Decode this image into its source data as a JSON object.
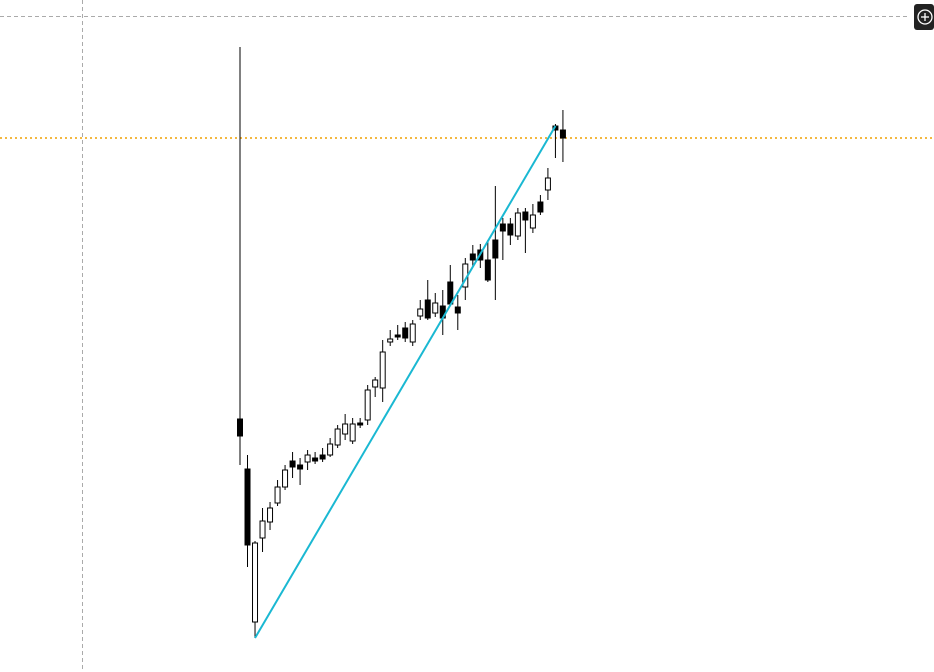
{
  "chart_data": {
    "type": "candlestick",
    "ylim": [
      0,
      672
    ],
    "open": [
      253,
      203,
      50,
      134,
      150,
      169,
      185,
      211,
      207,
      210,
      214,
      217,
      217,
      227,
      238,
      231,
      249,
      252,
      285,
      284,
      330,
      337,
      344,
      330,
      356,
      372,
      359,
      366,
      390,
      365,
      385,
      418,
      422,
      412,
      432,
      448,
      448,
      436,
      460,
      444,
      470,
      482,
      546,
      542
    ],
    "high": [
      625,
      217,
      131,
      164,
      170,
      192,
      207,
      220,
      214,
      222,
      220,
      224,
      234,
      247,
      258,
      254,
      254,
      287,
      295,
      332,
      342,
      347,
      350,
      352,
      372,
      392,
      379,
      382,
      407,
      377,
      414,
      427,
      428,
      432,
      486,
      454,
      454,
      464,
      464,
      468,
      477,
      504,
      548,
      562
    ],
    "low": [
      207,
      105,
      34,
      120,
      142,
      166,
      182,
      194,
      187,
      202,
      208,
      210,
      215,
      224,
      232,
      228,
      244,
      247,
      275,
      270,
      326,
      332,
      330,
      326,
      352,
      352,
      355,
      337,
      366,
      342,
      372,
      406,
      404,
      390,
      372,
      412,
      427,
      432,
      419,
      439,
      457,
      472,
      514,
      510
    ],
    "close": [
      236,
      127,
      129,
      151,
      164,
      185,
      202,
      205,
      203,
      217,
      211,
      213,
      228,
      243,
      248,
      248,
      247,
      282,
      292,
      320,
      333,
      335,
      334,
      348,
      363,
      354,
      369,
      354,
      368,
      359,
      408,
      412,
      412,
      392,
      414,
      441,
      437,
      459,
      452,
      457,
      460,
      494,
      542,
      534
    ],
    "up_color": "#ffffff",
    "down_color": "#000000",
    "trendline": {
      "start": [
        2,
        34
      ],
      "end": [
        42,
        546
      ],
      "color": "#1ab8d2"
    },
    "hline": {
      "value": 534,
      "color": "#f0a000"
    }
  }
}
